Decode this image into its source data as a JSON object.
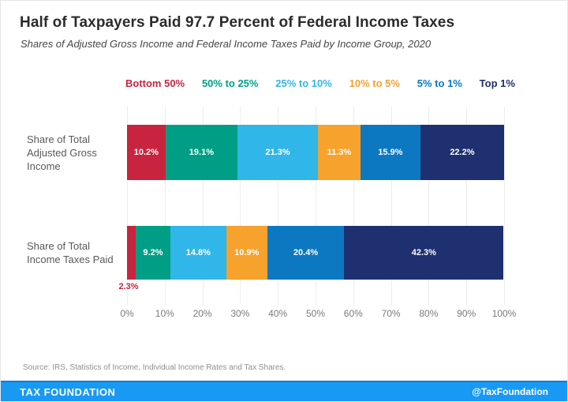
{
  "header": {
    "title": "Half of Taxpayers Paid 97.7 Percent of Federal Income Taxes",
    "subtitle": "Shares of Adjusted Gross Income and Federal Income Taxes Paid by Income Group, 2020"
  },
  "chart_data": {
    "type": "bar",
    "variant": "horizontal-stacked",
    "groups": [
      "Bottom 50%",
      "50% to 25%",
      "25% to 10%",
      "10% to 5%",
      "5% to 1%",
      "Top 1%"
    ],
    "colors": [
      "#c9243f",
      "#009f85",
      "#30b6e8",
      "#f6a22d",
      "#0d78c2",
      "#1e3070"
    ],
    "categories": [
      "Share of Total Adjusted Gross Income",
      "Share of Total Income Taxes Paid"
    ],
    "series": [
      {
        "name": "Share of Total Adjusted Gross Income",
        "values": [
          10.2,
          19.1,
          21.3,
          11.3,
          15.9,
          22.2
        ]
      },
      {
        "name": "Share of Total Income Taxes Paid",
        "values": [
          2.3,
          9.2,
          14.8,
          10.9,
          20.4,
          42.3
        ]
      }
    ],
    "x_ticks": [
      "0%",
      "10%",
      "20%",
      "30%",
      "40%",
      "50%",
      "60%",
      "70%",
      "80%",
      "90%",
      "100%"
    ],
    "xlim": [
      0,
      100
    ],
    "grid": true,
    "legend_position": "top",
    "outside_label": {
      "series_index": 1,
      "segment_index": 0,
      "text": "2.3%",
      "color": "#c9243f"
    },
    "min_inside_label_value": 4
  },
  "source": "Source: IRS, Statistics of Income, Individual Income Rates and Tax Shares.",
  "footer": {
    "brand": "TAX FOUNDATION",
    "handle": "@TaxFoundation",
    "bar_color": "#1899f4"
  }
}
